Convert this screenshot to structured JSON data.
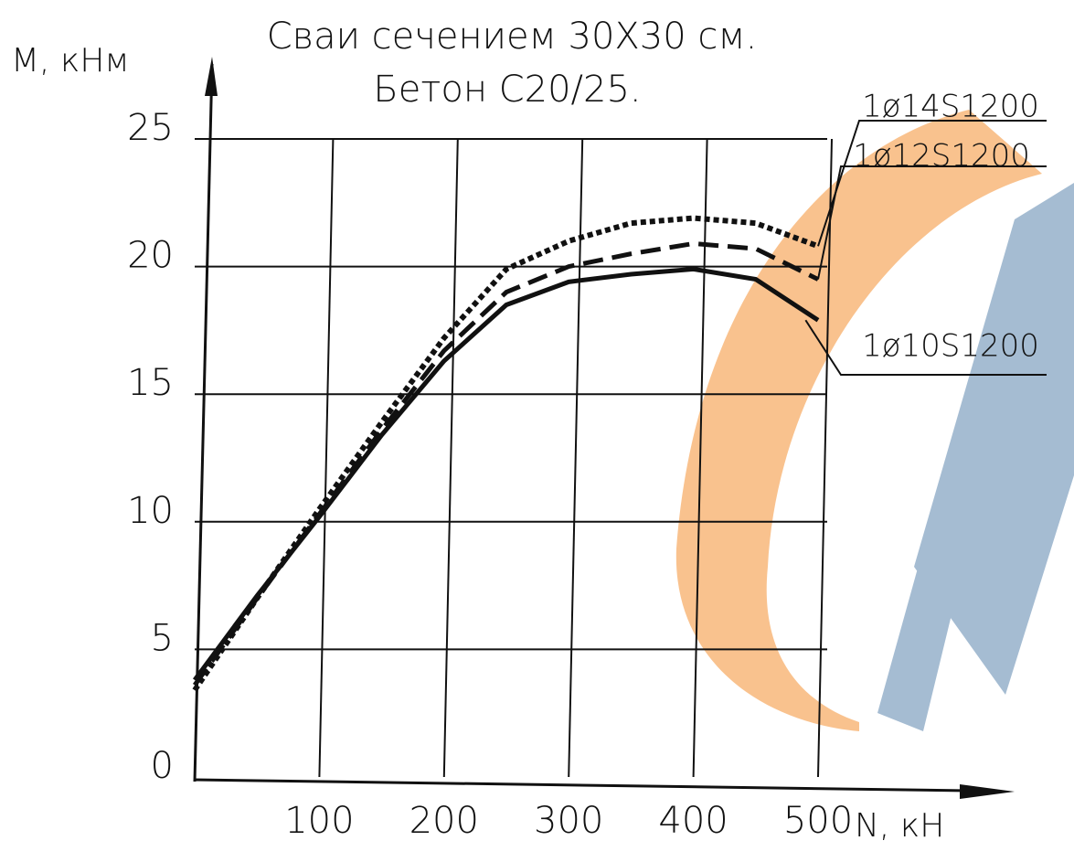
{
  "chart_data": {
    "type": "line",
    "title": "Сваи сечением 30Х30 см.",
    "subtitle": "Бетон C20/25.",
    "x_label": "N, кН",
    "y_label": "M, кНм",
    "x": [
      0,
      50,
      100,
      150,
      200,
      250,
      300,
      350,
      400,
      450,
      500
    ],
    "series": [
      {
        "name": "1ø14S1200",
        "color": "#111111",
        "style": "dotted",
        "values": [
          3.4,
          7.0,
          10.5,
          13.9,
          17.2,
          19.9,
          21.0,
          21.7,
          21.9,
          21.7,
          20.8
        ]
      },
      {
        "name": "1ø12S1200",
        "color": "#111111",
        "style": "dashed",
        "values": [
          3.6,
          7.0,
          10.3,
          13.6,
          16.7,
          19.0,
          20.0,
          20.5,
          20.9,
          20.7,
          19.5
        ]
      },
      {
        "name": "1ø10S1200",
        "color": "#111111",
        "style": "solid",
        "values": [
          3.8,
          7.1,
          10.2,
          13.4,
          16.3,
          18.5,
          19.4,
          19.7,
          19.9,
          19.5,
          17.9
        ]
      }
    ],
    "xlim": [
      0,
      500
    ],
    "xticks": [
      100,
      200,
      300,
      400,
      500
    ],
    "ylim": [
      0,
      25
    ],
    "yticks": [
      0,
      5,
      10,
      15,
      20,
      25
    ],
    "grid": true
  }
}
